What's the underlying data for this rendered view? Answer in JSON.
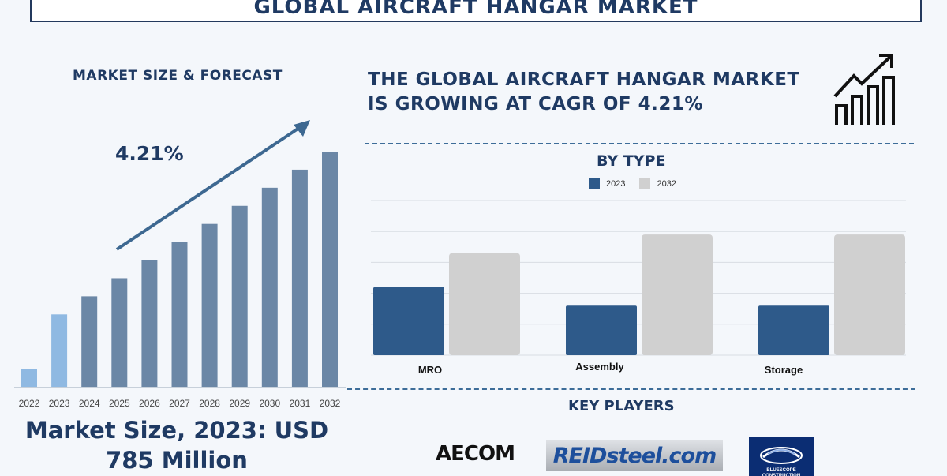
{
  "title": "GLOBAL AIRCRAFT HANGAR MARKET",
  "left_panel": {
    "heading": "MARKET SIZE & FORECAST",
    "cagr": "4.21%",
    "market_size_line1": "Market Size, 2023: USD",
    "market_size_line2": "785 Million"
  },
  "headline_line1": "THE GLOBAL AIRCRAFT HANGAR MARKET",
  "headline_line2": "IS GROWING AT CAGR OF 4.21%",
  "by_type_heading": "BY TYPE",
  "key_players": {
    "heading": "KEY PLAYERS",
    "logos": [
      "AECOM",
      "REIDsteel.com",
      "BLUESCOPE CONSTRUCTION"
    ]
  },
  "icons": [
    "growth-chart-icon",
    "trend-arrow"
  ],
  "colors": {
    "title": "#1f3a63",
    "bar_dark": "#6b87a6",
    "bar_light": "#8fb9e2",
    "series_2023": "#2e5a8a",
    "series_2032": "#d0d0d0",
    "arrow": "#3d6891"
  },
  "chart_data": [
    {
      "type": "bar",
      "categories": [
        "2022",
        "2023",
        "2024",
        "2025",
        "2026",
        "2027",
        "2028",
        "2029",
        "2030",
        "2031",
        "2032"
      ],
      "values": [
        1,
        4,
        5,
        6,
        7,
        8,
        9,
        10,
        11,
        12,
        13
      ],
      "highlight": [
        "2022",
        "2023"
      ],
      "annotation": "4.21%",
      "grid": false
    },
    {
      "type": "bar",
      "title": "BY TYPE",
      "categories": [
        "MRO",
        "Assembly",
        "Storage"
      ],
      "series": [
        {
          "name": "2023",
          "values": [
            2.2,
            1.6,
            1.6
          ]
        },
        {
          "name": "2032",
          "values": [
            3.3,
            3.9,
            3.9
          ]
        }
      ],
      "ylim": [
        0,
        5
      ],
      "grid": true,
      "legend": "top"
    }
  ]
}
